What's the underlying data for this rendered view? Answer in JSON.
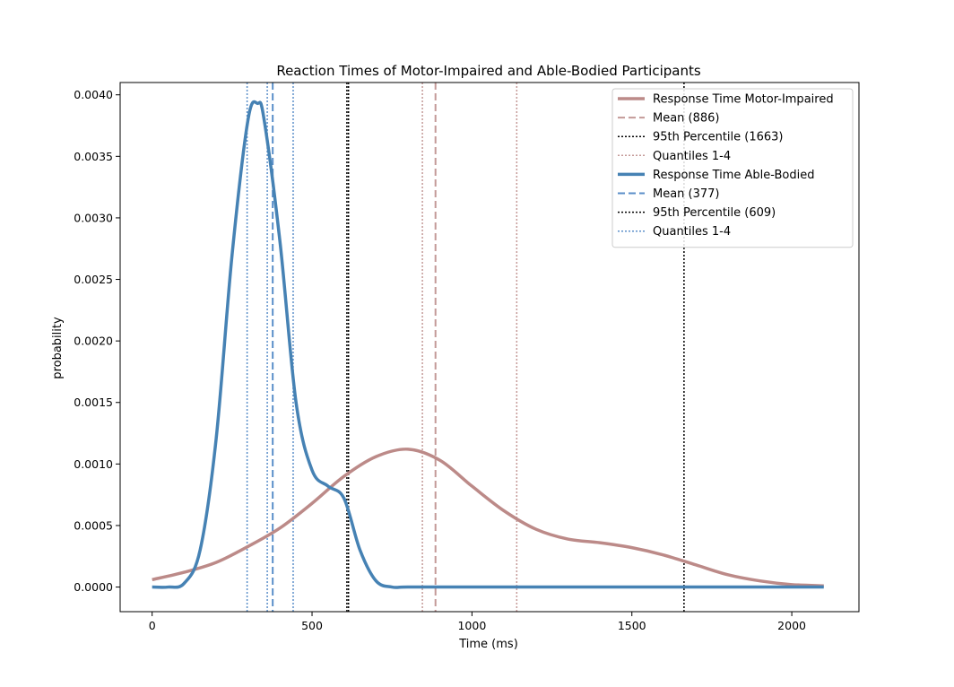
{
  "chart_data": {
    "type": "line",
    "title": "Reaction Times of Motor-Impaired and Able-Bodied Participants",
    "xlabel": "Time (ms)",
    "ylabel": "probability",
    "xlim": [
      -100,
      2210
    ],
    "ylim": [
      -0.0002,
      0.0041
    ],
    "xticks": [
      0,
      500,
      1000,
      1500,
      2000
    ],
    "xtick_labels": [
      "0",
      "500",
      "1000",
      "1500",
      "2000"
    ],
    "yticks": [
      0.0,
      0.0005,
      0.001,
      0.0015,
      0.002,
      0.0025,
      0.003,
      0.0035,
      0.004
    ],
    "ytick_labels": [
      "0.0000",
      "0.0005",
      "0.0010",
      "0.0015",
      "0.0020",
      "0.0025",
      "0.0030",
      "0.0035",
      "0.0040"
    ],
    "grid": false,
    "legend_position": "top-right",
    "series": [
      {
        "name": "Response Time Motor-Impaired",
        "color": "#bc8a88",
        "x": [
          0,
          100,
          200,
          300,
          400,
          500,
          600,
          700,
          800,
          900,
          1000,
          1100,
          1200,
          1300,
          1400,
          1500,
          1600,
          1700,
          1800,
          1900,
          2000,
          2100
        ],
        "y": [
          6e-05,
          0.00012,
          0.0002,
          0.00033,
          0.00048,
          0.00068,
          0.0009,
          0.00106,
          0.00112,
          0.00103,
          0.00082,
          0.00062,
          0.00047,
          0.00039,
          0.00036,
          0.00032,
          0.00026,
          0.00018,
          0.0001,
          5e-05,
          2e-05,
          1e-05
        ]
      },
      {
        "name": "Response Time Able-Bodied",
        "color": "#4682b4",
        "x": [
          0,
          50,
          100,
          150,
          200,
          250,
          300,
          330,
          350,
          400,
          450,
          500,
          550,
          600,
          650,
          700,
          750,
          800,
          1000,
          1500,
          2100
        ],
        "y": [
          0.0,
          0.0,
          3e-05,
          0.0003,
          0.0012,
          0.0027,
          0.0038,
          0.00393,
          0.0038,
          0.0028,
          0.0015,
          0.00095,
          0.00082,
          0.00072,
          0.0003,
          5e-05,
          0.0,
          0.0,
          0.0,
          0.0,
          0.0
        ]
      }
    ],
    "vlines": [
      {
        "name": "Mean (886)",
        "x": 886,
        "color": "#c49a98",
        "style": "dashed",
        "group": "motor"
      },
      {
        "name": "95th Percentile (1663)",
        "x": 1663,
        "color": "#000000",
        "style": "dotted",
        "group": "motor"
      },
      {
        "name": "Quantiles 1-4",
        "x": [
          845,
          1140
        ],
        "color": "#c49a98",
        "style": "dotted",
        "group": "motor"
      },
      {
        "name": "Mean (377)",
        "x": 377,
        "color": "#5b8fc9",
        "style": "dashed",
        "group": "able"
      },
      {
        "name": "95th Percentile (609)",
        "x": 609,
        "color": "#000000",
        "style": "dotted",
        "group": "able"
      },
      {
        "name": "Quantiles 1-4",
        "x": [
          297,
          360,
          441
        ],
        "color": "#5b8fc9",
        "style": "dotted",
        "group": "able"
      }
    ],
    "extra_vlines": [
      {
        "x": 614,
        "color": "#000000",
        "style": "dotted"
      }
    ],
    "legend": [
      {
        "label": "Response Time Motor-Impaired",
        "color": "#bc8a88",
        "style": "solid"
      },
      {
        "label": "Mean (886)",
        "color": "#c49a98",
        "style": "dashed"
      },
      {
        "label": "95th Percentile (1663)",
        "color": "#000000",
        "style": "dotted"
      },
      {
        "label": "Quantiles 1-4",
        "color": "#c49a98",
        "style": "dotted"
      },
      {
        "label": "Response Time Able-Bodied",
        "color": "#4682b4",
        "style": "solid"
      },
      {
        "label": "Mean (377)",
        "color": "#5b8fc9",
        "style": "dashed"
      },
      {
        "label": "95th Percentile (609)",
        "color": "#000000",
        "style": "dotted"
      },
      {
        "label": "Quantiles 1-4",
        "color": "#5b8fc9",
        "style": "dotted"
      }
    ]
  }
}
